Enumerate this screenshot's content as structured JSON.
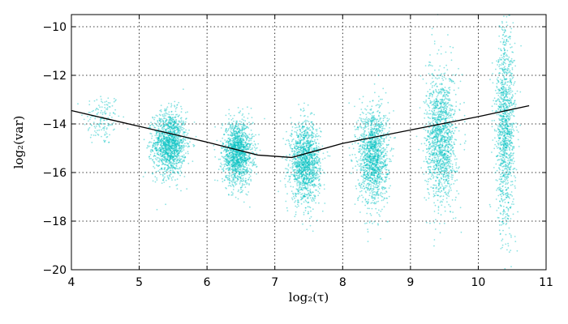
{
  "chart_data": {
    "type": "scatter",
    "title": "",
    "xlabel": "log₂(τ)",
    "ylabel": "log₂(var)",
    "xlim": [
      4,
      11
    ],
    "ylim": [
      -20,
      -9.5
    ],
    "xticks": [
      4,
      5,
      6,
      7,
      8,
      9,
      10,
      11
    ],
    "yticks": [
      -20,
      -18,
      -16,
      -14,
      -12,
      -10
    ],
    "xtick_labels": [
      "4",
      "5",
      "6",
      "7",
      "8",
      "9",
      "10",
      "11"
    ],
    "ytick_labels": [
      "−20",
      "−18",
      "−16",
      "−14",
      "−12",
      "−10"
    ],
    "grid": true,
    "scatter_color": "#00c0c0",
    "line_color": "#000000",
    "clusters": [
      {
        "x_center": 4.45,
        "x_spread": 0.25,
        "y_center": -13.8,
        "y_spread": 0.55,
        "count": 150
      },
      {
        "x_center": 5.45,
        "x_spread": 0.22,
        "y_center": -14.8,
        "y_spread": 0.65,
        "count": 1400
      },
      {
        "x_center": 6.45,
        "x_spread": 0.2,
        "y_center": -15.2,
        "y_spread": 0.65,
        "count": 1400
      },
      {
        "x_center": 7.45,
        "x_spread": 0.2,
        "y_center": -15.6,
        "y_spread": 0.8,
        "count": 1400
      },
      {
        "x_center": 8.45,
        "x_spread": 0.2,
        "y_center": -15.3,
        "y_spread": 1.0,
        "count": 1400
      },
      {
        "x_center": 9.45,
        "x_spread": 0.2,
        "y_center": -14.6,
        "y_spread": 1.35,
        "count": 1400
      },
      {
        "x_center": 10.4,
        "x_spread": 0.13,
        "y_center": -14.2,
        "y_spread": 2.0,
        "count": 1200
      }
    ],
    "series": [
      {
        "type": "line",
        "x": [
          4.0,
          5.0,
          6.0,
          6.75,
          7.25,
          8.0,
          9.0,
          10.0,
          10.75
        ],
        "y": [
          -13.45,
          -14.1,
          -14.75,
          -15.28,
          -15.38,
          -14.8,
          -14.25,
          -13.7,
          -13.25
        ]
      }
    ]
  }
}
